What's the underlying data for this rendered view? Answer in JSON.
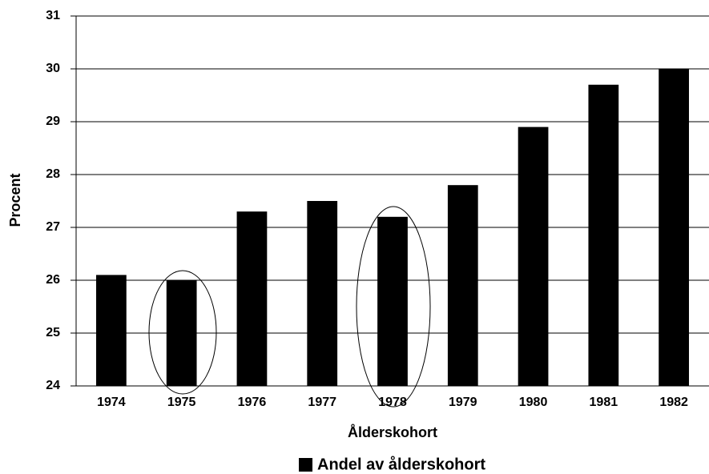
{
  "chart_data": {
    "type": "bar",
    "x_label": "Ålderskohort",
    "y_label": "Procent",
    "categories": [
      "1974",
      "1975",
      "1976",
      "1977",
      "1978",
      "1979",
      "1980",
      "1981",
      "1982"
    ],
    "series": [
      {
        "name": "Andel av ålderskohort",
        "color": "#000000",
        "values": [
          26.1,
          26.0,
          27.3,
          27.5,
          27.2,
          27.8,
          28.9,
          29.7,
          30.0
        ]
      }
    ],
    "ylim": [
      24,
      31
    ],
    "yticks": [
      24,
      25,
      26,
      27,
      28,
      29,
      30,
      31
    ],
    "grid": true,
    "legend": "bottom"
  }
}
